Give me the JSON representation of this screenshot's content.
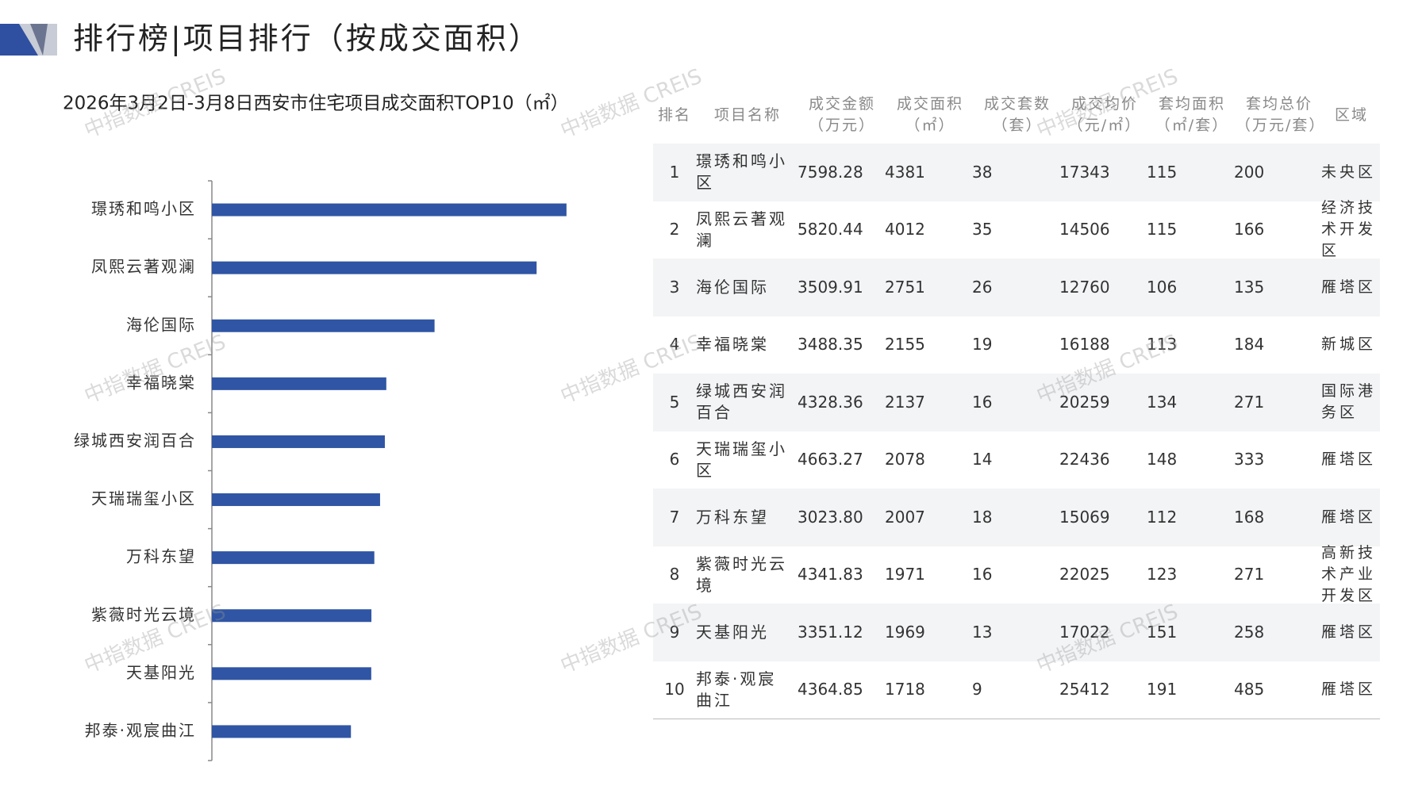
{
  "header": {
    "title": "排行榜|项目排行（按成交面积）"
  },
  "watermark": "中指数据 CREIS",
  "chart_data": {
    "type": "bar",
    "orientation": "horizontal",
    "title": "2026年3月2日-3月8日西安市住宅项目成交面积TOP10（㎡）",
    "categories": [
      "璟琇和鸣小区",
      "凤熙云著观澜",
      "海伦国际",
      "幸福晓棠",
      "绿城西安润百合",
      "天瑞瑞玺小区",
      "万科东望",
      "紫薇时光云境",
      "天基阳光",
      "邦泰·观宸曲江"
    ],
    "values": [
      4381,
      4012,
      2751,
      2155,
      2137,
      2078,
      2007,
      1971,
      1969,
      1718
    ],
    "color": "#2f55a4",
    "xlim": [
      0,
      5000
    ]
  },
  "table": {
    "columns": [
      [
        "排名"
      ],
      [
        "项目名称"
      ],
      [
        "成交金额",
        "（万元）"
      ],
      [
        "成交面积",
        "（㎡）"
      ],
      [
        "成交套数",
        "（套）"
      ],
      [
        "成交均价",
        "（元/㎡）"
      ],
      [
        "套均面积",
        "（㎡/套）"
      ],
      [
        "套均总价",
        "（万元/套）"
      ],
      [
        "区域"
      ]
    ],
    "rows": [
      [
        "1",
        "璟琇和鸣小区",
        "7598.28",
        "4381",
        "38",
        "17343",
        "115",
        "200",
        "未央区"
      ],
      [
        "2",
        "凤熙云著观澜",
        "5820.44",
        "4012",
        "35",
        "14506",
        "115",
        "166",
        "经济技术开发区"
      ],
      [
        "3",
        "海伦国际",
        "3509.91",
        "2751",
        "26",
        "12760",
        "106",
        "135",
        "雁塔区"
      ],
      [
        "4",
        "幸福晓棠",
        "3488.35",
        "2155",
        "19",
        "16188",
        "113",
        "184",
        "新城区"
      ],
      [
        "5",
        "绿城西安润百合",
        "4328.36",
        "2137",
        "16",
        "20259",
        "134",
        "271",
        "国际港务区"
      ],
      [
        "6",
        "天瑞瑞玺小区",
        "4663.27",
        "2078",
        "14",
        "22436",
        "148",
        "333",
        "雁塔区"
      ],
      [
        "7",
        "万科东望",
        "3023.80",
        "2007",
        "18",
        "15069",
        "112",
        "168",
        "雁塔区"
      ],
      [
        "8",
        "紫薇时光云境",
        "4341.83",
        "1971",
        "16",
        "22025",
        "123",
        "271",
        "高新技术产业开发区"
      ],
      [
        "9",
        "天基阳光",
        "3351.12",
        "1969",
        "13",
        "17022",
        "151",
        "258",
        "雁塔区"
      ],
      [
        "10",
        "邦泰·观宸曲江",
        "4364.85",
        "1718",
        "9",
        "25412",
        "191",
        "485",
        "雁塔区"
      ]
    ]
  }
}
